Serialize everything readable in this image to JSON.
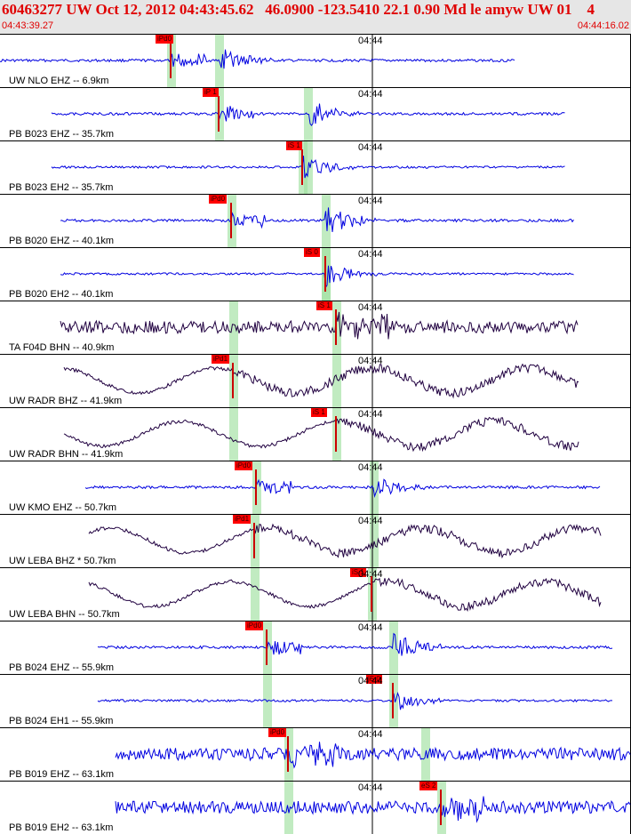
{
  "header": {
    "title": "60463277 UW Oct 12, 2012 04:43:45.62   46.0900 -123.5410 22.1 0.90 Md le amyw UW 01    4",
    "start_time": "04:43:39.27",
    "end_time": "04:44:16.02"
  },
  "tick_label": "04:44",
  "colors": {
    "accent": "#e00000",
    "trace_blue": "#0000e0",
    "trace_dark": "#200040",
    "band": "#9fe09f"
  },
  "traces": [
    {
      "label": "UW NLO EHZ -- 6.9km",
      "pick": "iPd0",
      "color": "#0000e0"
    },
    {
      "label": "PB B023 EHZ -- 35.7km",
      "pick": "iP 1",
      "color": "#0000e0"
    },
    {
      "label": "PB B023 EH2 -- 35.7km",
      "pick": "iS 1",
      "color": "#0000e0"
    },
    {
      "label": "PB B020 EHZ -- 40.1km",
      "pick": "iPd0",
      "color": "#0000e0"
    },
    {
      "label": "PB B020 EH2 -- 40.1km",
      "pick": "iS 0",
      "color": "#0000e0"
    },
    {
      "label": "TA F04D BHN -- 40.9km",
      "pick": "iS 1",
      "color": "#200040"
    },
    {
      "label": "UW RADR BHZ -- 41.9km",
      "pick": "iPd1",
      "color": "#200040"
    },
    {
      "label": "UW RADR BHN -- 41.9km",
      "pick": "iS 1",
      "color": "#200040"
    },
    {
      "label": "UW KMO EHZ -- 50.7km",
      "pick": "iPd0",
      "color": "#0000e0"
    },
    {
      "label": "UW LEBA BHZ * 50.7km",
      "pick": "iPd1",
      "color": "#200040"
    },
    {
      "label": "UW LEBA BHN -- 50.7km",
      "pick": "iS 1",
      "color": "#200040"
    },
    {
      "label": "PB B024 EHZ -- 55.9km",
      "pick": "iPd0",
      "color": "#0000e0"
    },
    {
      "label": "PB B024 EH1 -- 55.9km",
      "pick": "iS 0",
      "color": "#0000e0"
    },
    {
      "label": "PB B019 EHZ -- 63.1km",
      "pick": "iPd0",
      "color": "#0000e0"
    },
    {
      "label": "PB B019 EH2 -- 63.1km",
      "pick": "eS 2",
      "color": "#0000e0"
    }
  ]
}
